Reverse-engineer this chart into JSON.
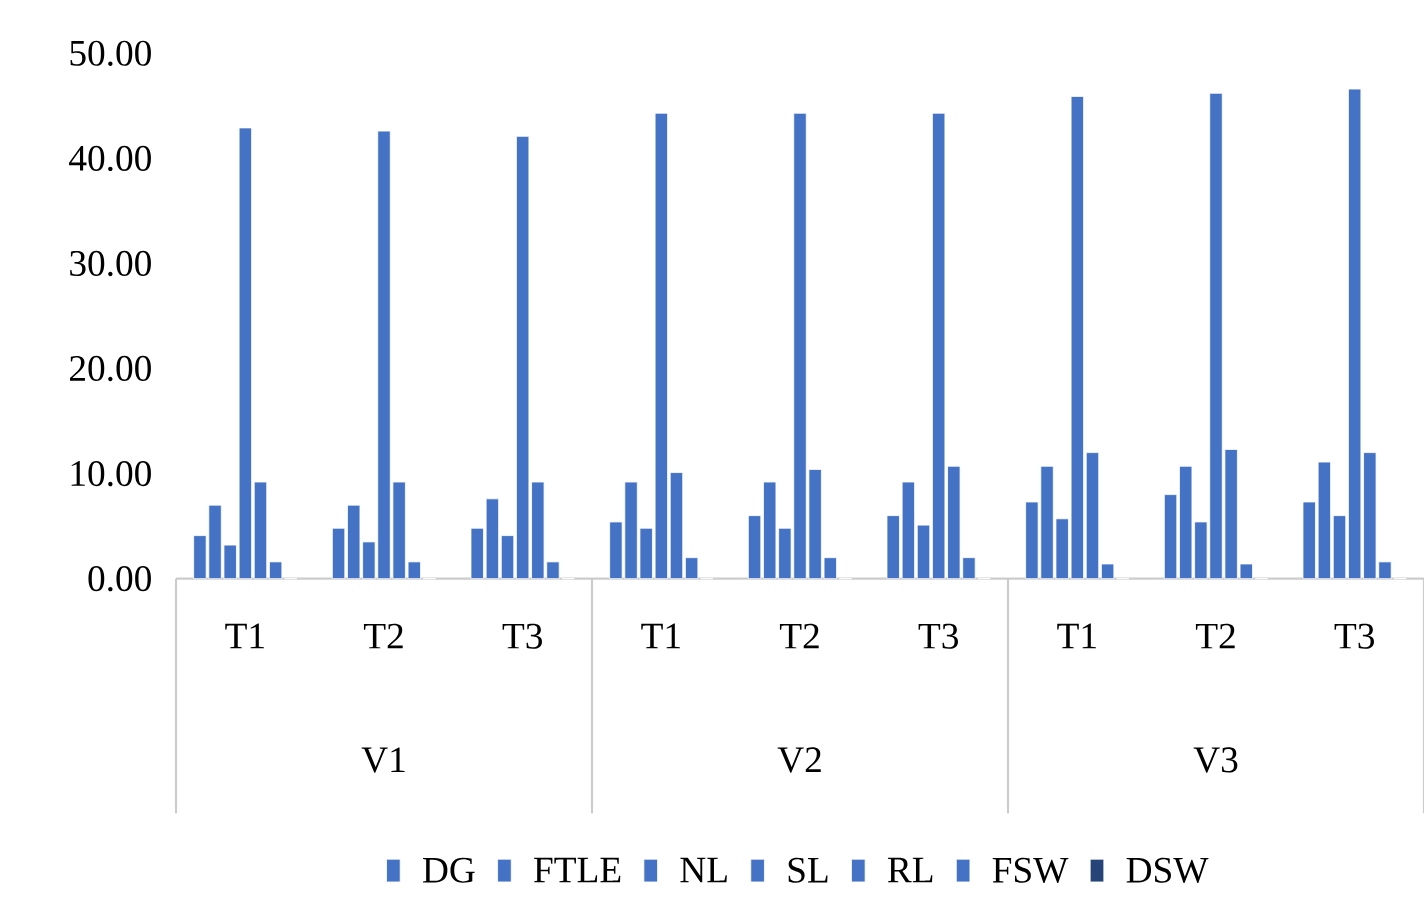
{
  "chart_data": {
    "type": "bar",
    "categories": [
      "T1",
      "T2",
      "T3",
      "T1",
      "T2",
      "T3",
      "T1",
      "T2",
      "T3"
    ],
    "annotations": [
      "V1",
      "V2",
      "V3"
    ],
    "series": [
      {
        "name": "DG",
        "color": "#4472c4",
        "values": [
          4.1,
          4.8,
          4.8,
          5.4,
          6.0,
          6.0,
          7.3,
          8.0,
          7.3
        ]
      },
      {
        "name": "FTLE",
        "color": "#4472c4",
        "values": [
          7.0,
          7.0,
          7.6,
          9.2,
          9.2,
          9.2,
          10.7,
          10.7,
          11.1
        ]
      },
      {
        "name": "NL",
        "color": "#4472c4",
        "values": [
          3.2,
          3.5,
          4.1,
          4.8,
          4.8,
          5.1,
          5.7,
          5.4,
          6.0
        ]
      },
      {
        "name": "SL",
        "color": "#4472c4",
        "values": [
          42.9,
          42.6,
          42.1,
          44.3,
          44.3,
          44.3,
          45.9,
          46.2,
          46.6
        ]
      },
      {
        "name": "RL",
        "color": "#4472c4",
        "values": [
          9.2,
          9.2,
          9.2,
          10.1,
          10.4,
          10.7,
          12.0,
          12.3,
          12.0
        ]
      },
      {
        "name": "FSW",
        "color": "#4472c4",
        "values": [
          1.6,
          1.6,
          1.6,
          2.0,
          2.0,
          2.0,
          1.4,
          1.4,
          1.6
        ]
      },
      {
        "name": "DSW",
        "color": "#264478",
        "values": [
          0,
          0,
          0,
          0,
          0,
          0,
          0,
          0,
          0
        ]
      }
    ],
    "ylim": [
      0,
      50
    ],
    "yticks": [
      {
        "value": 0,
        "label": "0.00"
      },
      {
        "value": 10,
        "label": "10.00"
      },
      {
        "value": 20,
        "label": "20.00"
      },
      {
        "value": 30,
        "label": "30.00"
      },
      {
        "value": 40,
        "label": "40.00"
      },
      {
        "value": 50,
        "label": "50.00"
      }
    ],
    "legend": "bottom"
  }
}
